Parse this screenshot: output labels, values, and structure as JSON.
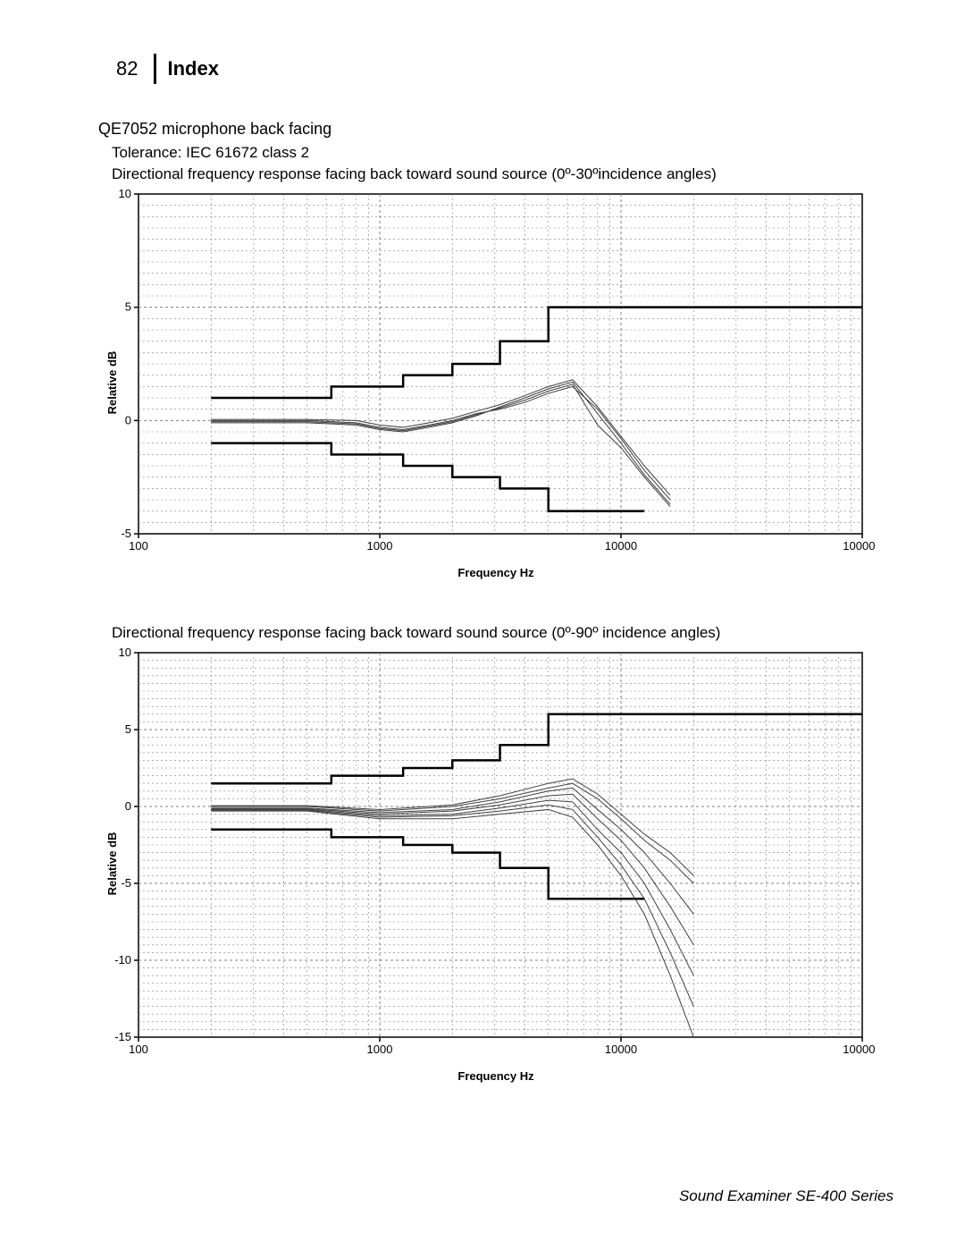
{
  "page_number": "82",
  "section": "Index",
  "mic_title": "QE7052 microphone back facing",
  "tolerance": "Tolerance:  IEC 61672 class 2",
  "footer": "Sound Examiner SE-400 Series",
  "chart1": {
    "title": "Directional frequency response facing back toward sound source (0º-30ºincidence angles)",
    "type": "line",
    "xlabel": "Frequency Hz",
    "ylabel": "Relative dB",
    "xscale": "log",
    "xlim": [
      100,
      100000
    ],
    "ylim": [
      -5,
      10
    ],
    "ytick_step": 5,
    "yticks": [
      -5,
      0,
      5,
      10
    ],
    "xticks": [
      100,
      1000,
      10000,
      100000
    ],
    "background_color": "#ffffff",
    "grid_color": "#808080",
    "grid_dash": "3,3",
    "minor_grid_dash": "2,3",
    "axis_color": "#000000",
    "tolerance_upper": {
      "color": "#000000",
      "width": 2.5,
      "points": [
        [
          200,
          1
        ],
        [
          630,
          1
        ],
        [
          630,
          1.5
        ],
        [
          1250,
          1.5
        ],
        [
          1250,
          2
        ],
        [
          2000,
          2
        ],
        [
          2000,
          2.5
        ],
        [
          3150,
          2.5
        ],
        [
          3150,
          3.5
        ],
        [
          5000,
          3.5
        ],
        [
          5000,
          5
        ],
        [
          100000,
          5
        ]
      ]
    },
    "tolerance_lower": {
      "color": "#000000",
      "width": 2.5,
      "points": [
        [
          200,
          -1
        ],
        [
          630,
          -1
        ],
        [
          630,
          -1.5
        ],
        [
          1250,
          -1.5
        ],
        [
          1250,
          -2
        ],
        [
          2000,
          -2
        ],
        [
          2000,
          -2.5
        ],
        [
          3150,
          -2.5
        ],
        [
          3150,
          -3
        ],
        [
          5000,
          -3
        ],
        [
          5000,
          -4
        ],
        [
          12500,
          -4
        ]
      ]
    },
    "response_color": "#404040",
    "response_width": 1,
    "responses": [
      [
        [
          200,
          0
        ],
        [
          500,
          0
        ],
        [
          800,
          -0.1
        ],
        [
          1000,
          -0.3
        ],
        [
          1250,
          -0.4
        ],
        [
          1600,
          -0.2
        ],
        [
          2000,
          0
        ],
        [
          2500,
          0.3
        ],
        [
          3150,
          0.5
        ],
        [
          4000,
          0.8
        ],
        [
          5000,
          1.2
        ],
        [
          6300,
          1.5
        ],
        [
          8000,
          0.5
        ],
        [
          10000,
          -0.8
        ],
        [
          12500,
          -2.2
        ],
        [
          16000,
          -3.5
        ]
      ],
      [
        [
          200,
          -0.1
        ],
        [
          500,
          -0.1
        ],
        [
          800,
          -0.2
        ],
        [
          1000,
          -0.4
        ],
        [
          1250,
          -0.5
        ],
        [
          1600,
          -0.3
        ],
        [
          2000,
          -0.1
        ],
        [
          2500,
          0.2
        ],
        [
          3150,
          0.6
        ],
        [
          4000,
          1.0
        ],
        [
          5000,
          1.4
        ],
        [
          6300,
          1.7
        ],
        [
          8000,
          0.3
        ],
        [
          10000,
          -1.0
        ],
        [
          12500,
          -2.4
        ],
        [
          16000,
          -3.7
        ]
      ],
      [
        [
          200,
          0.05
        ],
        [
          500,
          0.05
        ],
        [
          800,
          0
        ],
        [
          1000,
          -0.2
        ],
        [
          1250,
          -0.3
        ],
        [
          1600,
          -0.1
        ],
        [
          2000,
          0.1
        ],
        [
          2500,
          0.4
        ],
        [
          3150,
          0.7
        ],
        [
          4000,
          1.1
        ],
        [
          5000,
          1.5
        ],
        [
          6300,
          1.8
        ],
        [
          8000,
          0.6
        ],
        [
          10000,
          -0.7
        ],
        [
          12500,
          -2.0
        ],
        [
          16000,
          -3.3
        ]
      ],
      [
        [
          200,
          -0.05
        ],
        [
          500,
          -0.05
        ],
        [
          800,
          -0.15
        ],
        [
          1000,
          -0.35
        ],
        [
          1250,
          -0.45
        ],
        [
          1600,
          -0.25
        ],
        [
          2000,
          -0.05
        ],
        [
          2500,
          0.25
        ],
        [
          3150,
          0.55
        ],
        [
          4000,
          0.9
        ],
        [
          5000,
          1.3
        ],
        [
          6300,
          1.6
        ],
        [
          8000,
          -0.2
        ],
        [
          10000,
          -1.2
        ],
        [
          12500,
          -2.5
        ],
        [
          16000,
          -3.8
        ]
      ]
    ]
  },
  "chart2": {
    "title": "Directional frequency response facing back toward sound source (0º-90º incidence angles)",
    "type": "line",
    "xlabel": "Frequency Hz",
    "ylabel": "Relative dB",
    "xscale": "log",
    "xlim": [
      100,
      100000
    ],
    "ylim": [
      -15,
      10
    ],
    "ytick_step": 5,
    "yticks": [
      -15,
      -10,
      -5,
      0,
      5,
      10
    ],
    "xticks": [
      100,
      1000,
      10000,
      100000
    ],
    "background_color": "#ffffff",
    "grid_color": "#808080",
    "grid_dash": "3,3",
    "minor_grid_dash": "2,3",
    "axis_color": "#000000",
    "tolerance_upper": {
      "color": "#000000",
      "width": 2.5,
      "points": [
        [
          200,
          1.5
        ],
        [
          630,
          1.5
        ],
        [
          630,
          2
        ],
        [
          1250,
          2
        ],
        [
          1250,
          2.5
        ],
        [
          2000,
          2.5
        ],
        [
          2000,
          3
        ],
        [
          3150,
          3
        ],
        [
          3150,
          4
        ],
        [
          5000,
          4
        ],
        [
          5000,
          6
        ],
        [
          100000,
          6
        ]
      ]
    },
    "tolerance_lower": {
      "color": "#000000",
      "width": 2.5,
      "points": [
        [
          200,
          -1.5
        ],
        [
          630,
          -1.5
        ],
        [
          630,
          -2
        ],
        [
          1250,
          -2
        ],
        [
          1250,
          -2.5
        ],
        [
          2000,
          -2.5
        ],
        [
          2000,
          -3
        ],
        [
          3150,
          -3
        ],
        [
          3150,
          -4
        ],
        [
          5000,
          -4
        ],
        [
          5000,
          -6
        ],
        [
          12500,
          -6
        ]
      ]
    },
    "response_color": "#404040",
    "response_width": 1,
    "responses": [
      [
        [
          200,
          0
        ],
        [
          500,
          0
        ],
        [
          1000,
          -0.3
        ],
        [
          2000,
          0
        ],
        [
          3150,
          0.5
        ],
        [
          5000,
          1.2
        ],
        [
          6300,
          1.5
        ],
        [
          8000,
          0.5
        ],
        [
          10000,
          -0.8
        ],
        [
          12500,
          -2.2
        ],
        [
          16000,
          -3.5
        ],
        [
          20000,
          -5
        ]
      ],
      [
        [
          200,
          -0.1
        ],
        [
          500,
          -0.1
        ],
        [
          1000,
          -0.4
        ],
        [
          2000,
          -0.2
        ],
        [
          3150,
          0.3
        ],
        [
          5000,
          1.0
        ],
        [
          6300,
          1.2
        ],
        [
          8000,
          -0.2
        ],
        [
          10000,
          -1.5
        ],
        [
          12500,
          -3.0
        ],
        [
          16000,
          -5.0
        ],
        [
          20000,
          -7
        ]
      ],
      [
        [
          200,
          0.05
        ],
        [
          500,
          0.05
        ],
        [
          1000,
          -0.2
        ],
        [
          2000,
          0.1
        ],
        [
          3150,
          0.7
        ],
        [
          5000,
          1.5
        ],
        [
          6300,
          1.8
        ],
        [
          8000,
          0.8
        ],
        [
          10000,
          -0.5
        ],
        [
          12500,
          -1.8
        ],
        [
          16000,
          -3.0
        ],
        [
          20000,
          -4.5
        ]
      ],
      [
        [
          200,
          -0.15
        ],
        [
          500,
          -0.15
        ],
        [
          1000,
          -0.5
        ],
        [
          2000,
          -0.3
        ],
        [
          3150,
          0.1
        ],
        [
          5000,
          0.7
        ],
        [
          6300,
          0.8
        ],
        [
          8000,
          -0.8
        ],
        [
          10000,
          -2.2
        ],
        [
          12500,
          -4.0
        ],
        [
          16000,
          -6.5
        ],
        [
          20000,
          -9
        ]
      ],
      [
        [
          200,
          -0.2
        ],
        [
          500,
          -0.2
        ],
        [
          1000,
          -0.6
        ],
        [
          2000,
          -0.5
        ],
        [
          3150,
          -0.1
        ],
        [
          5000,
          0.4
        ],
        [
          6300,
          0.3
        ],
        [
          8000,
          -1.5
        ],
        [
          10000,
          -3.0
        ],
        [
          12500,
          -5.0
        ],
        [
          16000,
          -8.0
        ],
        [
          20000,
          -11
        ]
      ],
      [
        [
          200,
          -0.25
        ],
        [
          500,
          -0.25
        ],
        [
          1000,
          -0.7
        ],
        [
          2000,
          -0.6
        ],
        [
          3150,
          -0.3
        ],
        [
          5000,
          0.1
        ],
        [
          6300,
          -0.2
        ],
        [
          8000,
          -2.0
        ],
        [
          10000,
          -3.8
        ],
        [
          12500,
          -6.0
        ],
        [
          16000,
          -9.5
        ],
        [
          20000,
          -13
        ]
      ],
      [
        [
          200,
          -0.3
        ],
        [
          500,
          -0.3
        ],
        [
          1000,
          -0.8
        ],
        [
          2000,
          -0.8
        ],
        [
          3150,
          -0.5
        ],
        [
          5000,
          -0.2
        ],
        [
          6300,
          -0.7
        ],
        [
          8000,
          -2.5
        ],
        [
          10000,
          -4.5
        ],
        [
          12500,
          -7.0
        ],
        [
          16000,
          -11
        ],
        [
          20000,
          -15
        ]
      ]
    ]
  }
}
